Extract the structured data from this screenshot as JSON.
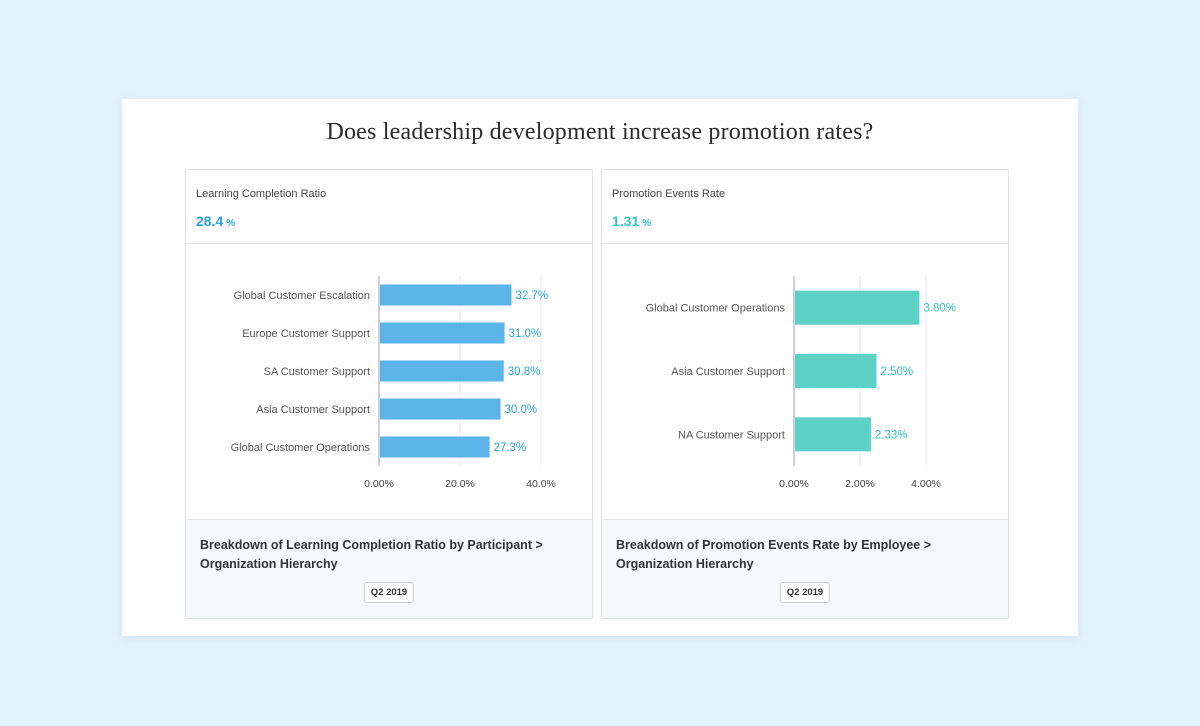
{
  "page": {
    "title": "Does leadership development increase promotion rates?"
  },
  "colors": {
    "blue": "#5cb3e8",
    "blue_text": "#2ba6de",
    "teal": "#5ed1c7",
    "teal_text": "#31c7b9"
  },
  "panels": [
    {
      "kpi_title": "Learning Completion Ratio",
      "kpi_value": "28.4",
      "kpi_unit": "%",
      "footer_title": "Breakdown of Learning Completion Ratio by Participant > Organization Hierarchy",
      "footer_badge": "Q2 2019"
    },
    {
      "kpi_title": "Promotion Events Rate",
      "kpi_value": "1.31",
      "kpi_unit": "%",
      "footer_title": "Breakdown of Promotion Events Rate by Employee > Organization Hierarchy",
      "footer_badge": "Q2 2019"
    }
  ],
  "chart_data": [
    {
      "type": "bar",
      "orientation": "horizontal",
      "categories": [
        "Global Customer Escalation",
        "Europe Customer Support",
        "SA Customer Support",
        "Asia Customer Support",
        "Global Customer Operations"
      ],
      "values": [
        32.7,
        31.0,
        30.8,
        30.0,
        27.3
      ],
      "value_labels": [
        "32.7%",
        "31.0%",
        "30.8%",
        "30.0%",
        "27.3%"
      ],
      "xlim": [
        0,
        40
      ],
      "xticks": [
        0,
        20,
        40
      ],
      "xtick_labels": [
        "0.00%",
        "20.0%",
        "40.0%"
      ],
      "grid": true,
      "color": "#5cb3e8",
      "label_color": "#2ba6de"
    },
    {
      "type": "bar",
      "orientation": "horizontal",
      "categories": [
        "Global Customer Operations",
        "Asia Customer Support",
        "NA Customer Support"
      ],
      "values": [
        3.8,
        2.5,
        2.33
      ],
      "value_labels": [
        "3.80%",
        "2.50%",
        "2.33%"
      ],
      "xlim": [
        0,
        4
      ],
      "xticks": [
        0,
        2,
        4
      ],
      "xtick_labels": [
        "0.00%",
        "2.00%",
        "4.00%"
      ],
      "grid": true,
      "color": "#5ed1c7",
      "label_color": "#31c7b9"
    }
  ]
}
